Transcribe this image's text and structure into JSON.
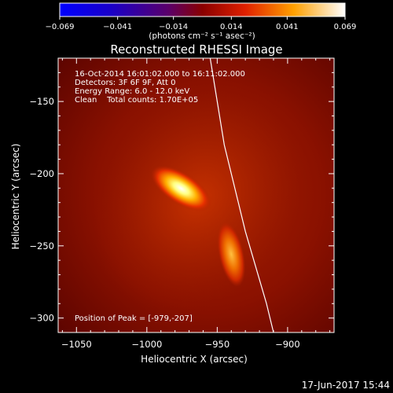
{
  "colorbar": {
    "ticks": [
      "-0.069",
      "-0.041",
      "-0.014",
      "0.014",
      "0.041",
      "0.069"
    ],
    "range": [
      -0.069,
      0.069
    ],
    "unit_label": "(photons cm⁻² s⁻¹ asec⁻²)"
  },
  "chart_data": {
    "type": "heatmap",
    "title": "Reconstructed RHESSI Image",
    "xlabel": "Heliocentric X (arcsec)",
    "ylabel": "Heliocentric Y (arcsec)",
    "xlim": [
      -1063,
      -867
    ],
    "ylim": [
      -310,
      -120
    ],
    "xticks": [
      -1050,
      -1000,
      -950,
      -900
    ],
    "xtick_labels": [
      "−1050",
      "−1000",
      "−950",
      "−900"
    ],
    "yticks": [
      -150,
      -200,
      -250,
      -300
    ],
    "ytick_labels": [
      "−150",
      "−200",
      "−250",
      "−300"
    ],
    "info_lines": [
      "16-Oct-2014 16:01:02.000 to 16:11:02.000",
      "Detectors: 3F 6F 9F, Att 0",
      "Energy Range: 6.0 - 12.0 keV",
      "Clean    Total counts: 1.70E+05"
    ],
    "peak_text": "Position of Peak = [-979,-207]",
    "peak": [
      -979,
      -207
    ],
    "sources": [
      {
        "x": -979,
        "y": -207,
        "intensity": 0.069
      },
      {
        "x": -940,
        "y": -258,
        "intensity": 0.05
      }
    ],
    "limb": [
      [
        -955,
        -120
      ],
      [
        -945,
        -180
      ],
      [
        -930,
        -240
      ],
      [
        -915,
        -290
      ],
      [
        -910,
        -310
      ]
    ]
  },
  "footer": {
    "date": "17-Jun-2017 15:44"
  }
}
